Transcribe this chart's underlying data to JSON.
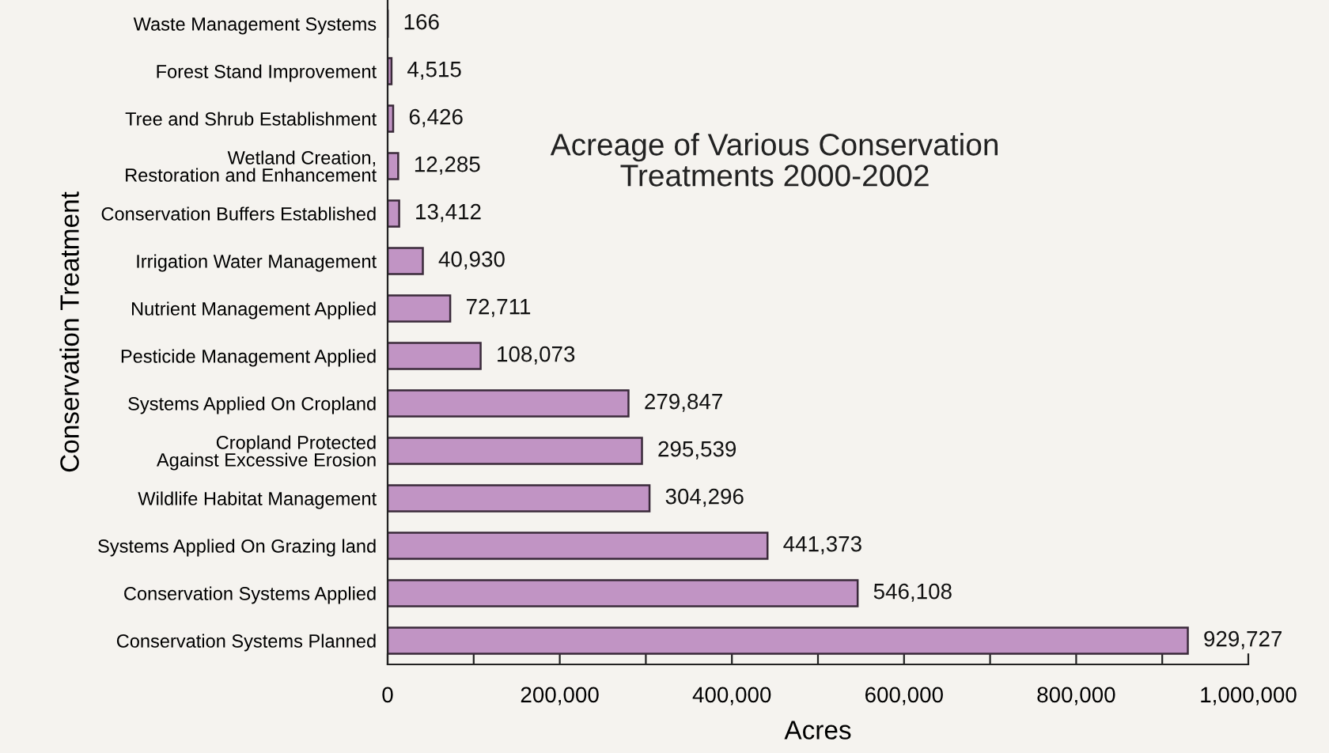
{
  "chart_data": {
    "type": "bar",
    "orientation": "horizontal",
    "title": "Acreage of Various Conservation\nTreatments 2000-2002",
    "xlabel": "Acres",
    "ylabel": "Conservation Treatment",
    "categories": [
      "Waste Management Systems",
      "Forest Stand Improvement",
      "Tree and Shrub Establishment",
      "Wetland Creation,\nRestoration and Enhancement",
      "Conservation Buffers Established",
      "Irrigation Water Management",
      "Nutrient Management Applied",
      "Pesticide Management Applied",
      "Systems Applied On Cropland",
      "Cropland Protected\nAgainst Excessive Erosion",
      "Wildlife Habitat Management",
      "Systems Applied On Grazing land",
      "Conservation Systems Applied",
      "Conservation Systems Planned"
    ],
    "values": [
      166,
      4515,
      6426,
      12285,
      13412,
      40930,
      72711,
      108073,
      279847,
      295539,
      304296,
      441373,
      546108,
      929727
    ],
    "value_labels": [
      "166",
      "4,515",
      "6,426",
      "12,285",
      "13,412",
      "40,930",
      "72,711",
      "108,073",
      "279,847",
      "295,539",
      "304,296",
      "441,373",
      "546,108",
      "929,727"
    ],
    "color": "#c194c4",
    "xlim": [
      0,
      1000000
    ],
    "xticks": [
      {
        "value": 0,
        "label": "0"
      },
      {
        "value": 100000,
        "label": null
      },
      {
        "value": 200000,
        "label": "200,000"
      },
      {
        "value": 300000,
        "label": null
      },
      {
        "value": 400000,
        "label": "400,000"
      },
      {
        "value": 500000,
        "label": null
      },
      {
        "value": 600000,
        "label": "600,000"
      },
      {
        "value": 700000,
        "label": null
      },
      {
        "value": 800000,
        "label": "800,000"
      },
      {
        "value": 900000,
        "label": null
      },
      {
        "value": 1000000,
        "label": "1,000,000"
      }
    ],
    "grid": false,
    "legend": false
  }
}
